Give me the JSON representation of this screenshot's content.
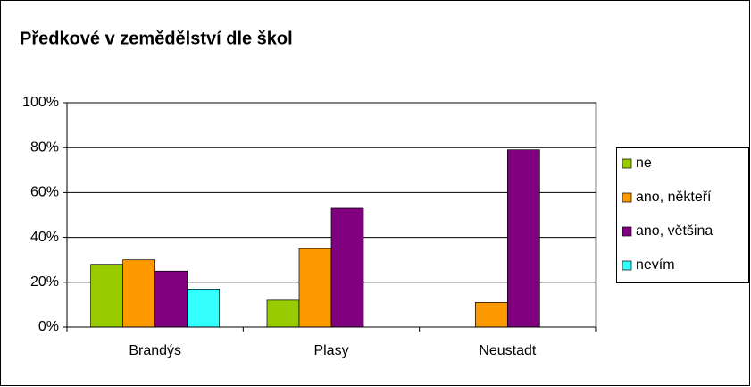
{
  "chart_data": {
    "type": "bar",
    "title": "Předkové v zemědělství dle škol",
    "categories": [
      "Brandýs",
      "Plasy",
      "Neustadt"
    ],
    "series": [
      {
        "name": "ne",
        "color": "#99cc00",
        "values": [
          28,
          12,
          null
        ]
      },
      {
        "name": "ano, někteří",
        "color": "#ff9900",
        "values": [
          30,
          35,
          11
        ]
      },
      {
        "name": "ano, většina",
        "color": "#800080",
        "values": [
          25,
          53,
          79
        ]
      },
      {
        "name": "nevím",
        "color": "#33ffff",
        "values": [
          17,
          null,
          null
        ]
      }
    ],
    "ylim": [
      0,
      100
    ],
    "yticks": [
      {
        "value": 0,
        "label": "0%"
      },
      {
        "value": 20,
        "label": "20%"
      },
      {
        "value": 40,
        "label": "40%"
      },
      {
        "value": 60,
        "label": "60%"
      },
      {
        "value": 80,
        "label": "80%"
      },
      {
        "value": 100,
        "label": "100%"
      }
    ],
    "grid": true,
    "legend": "right"
  }
}
